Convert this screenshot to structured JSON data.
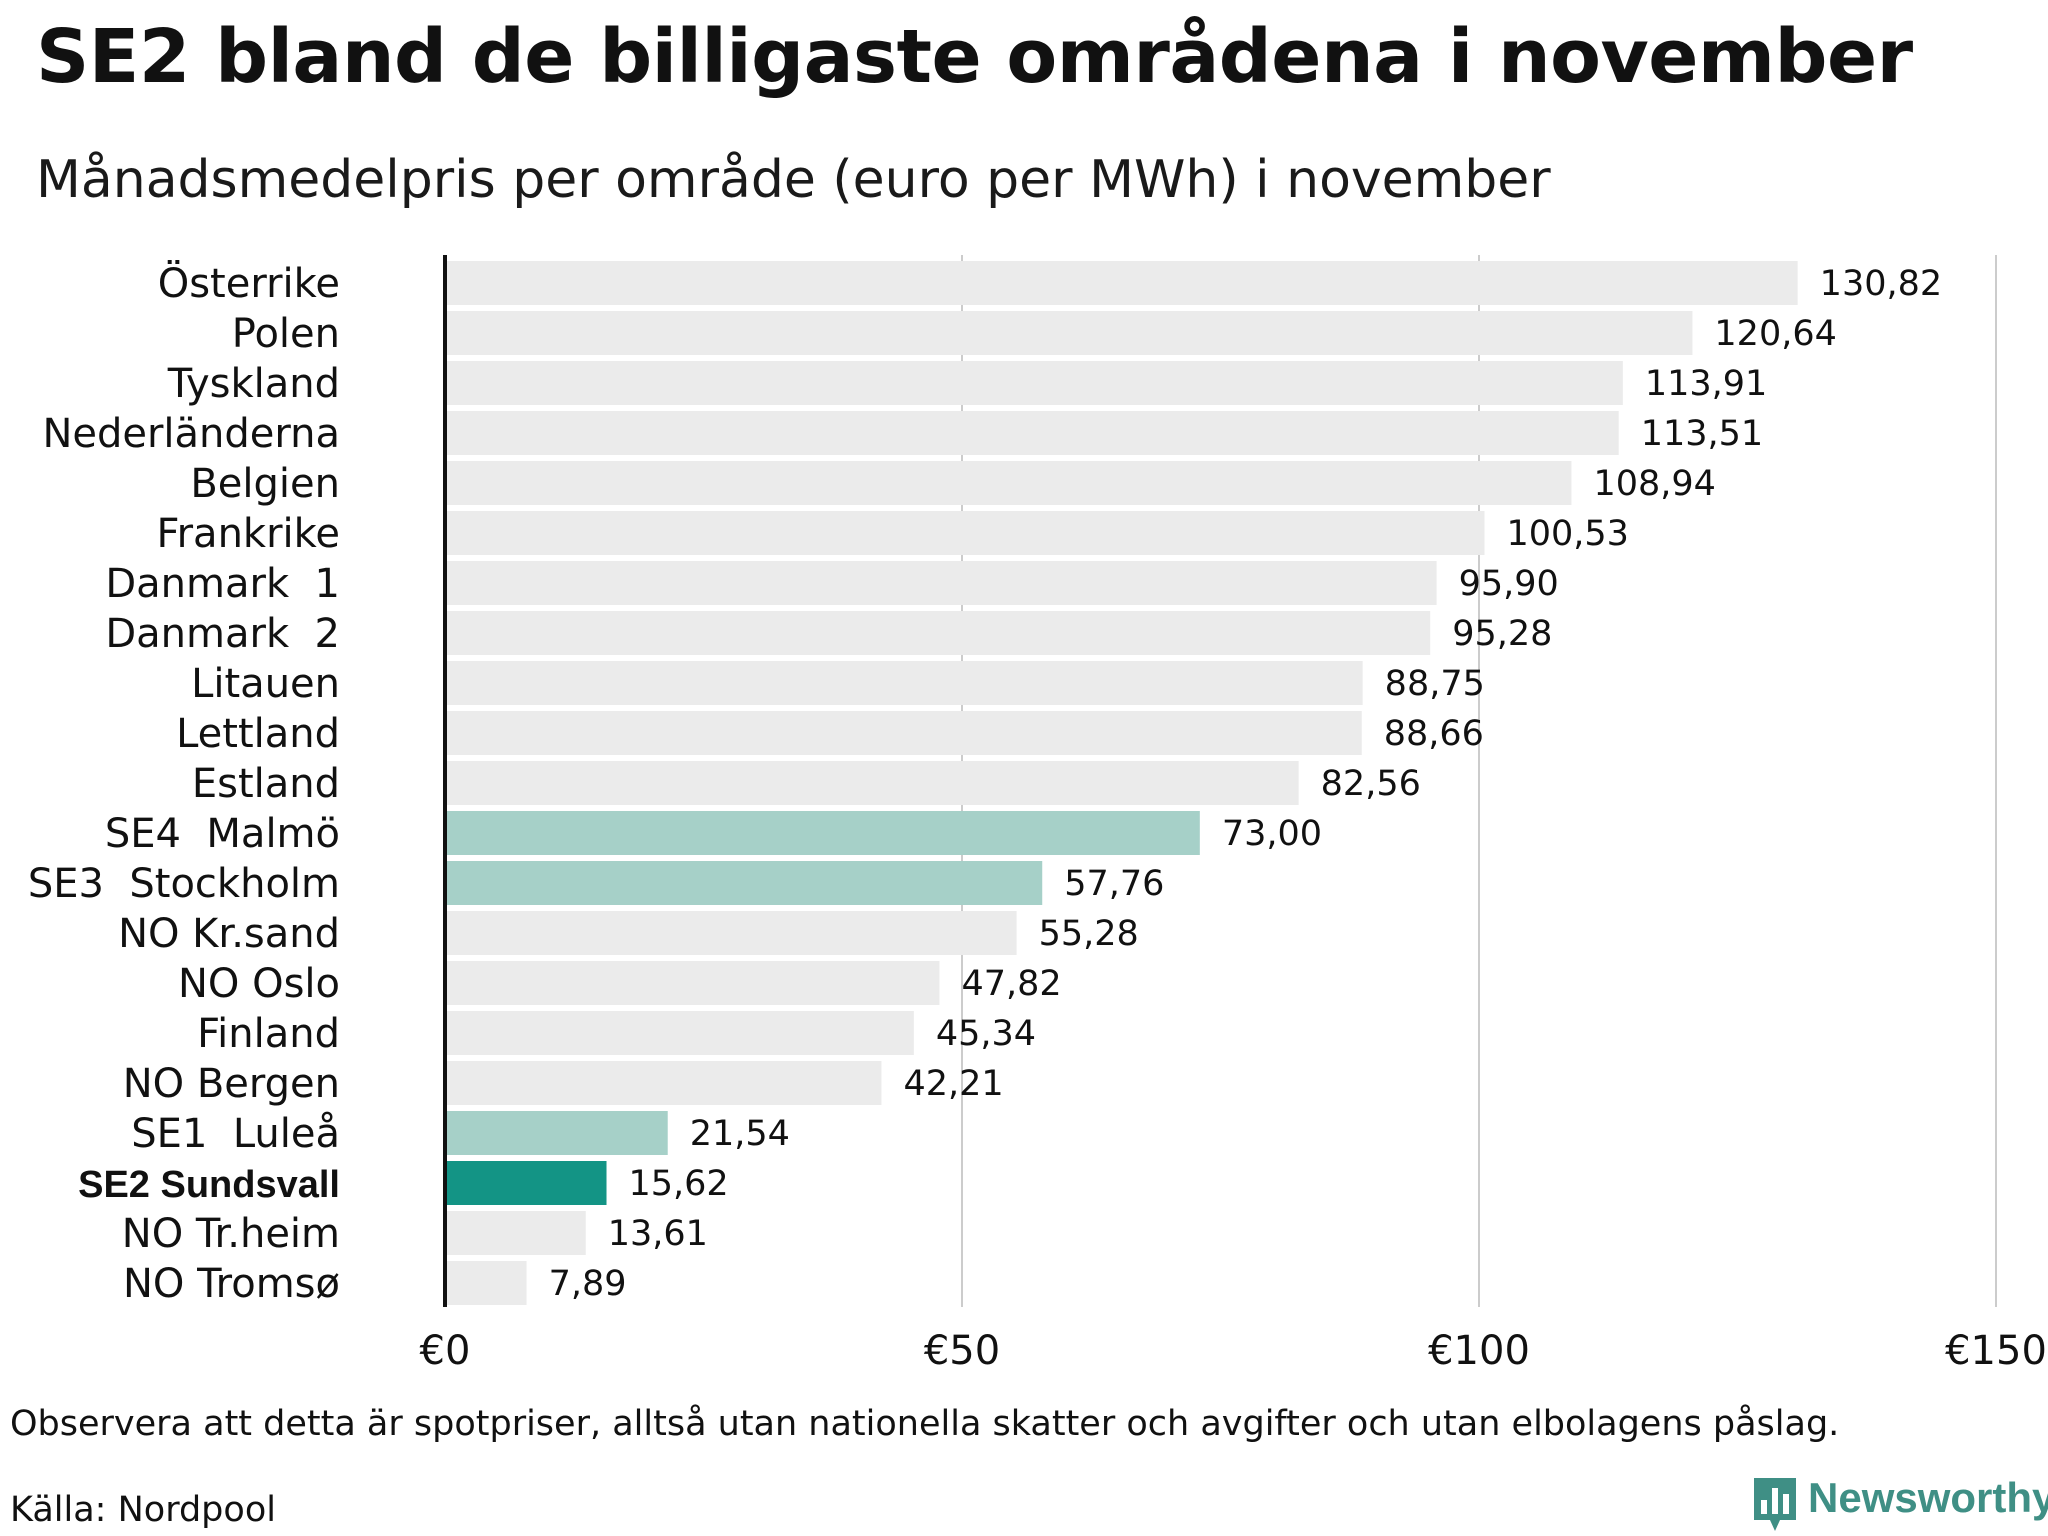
{
  "chart_data": {
    "type": "bar",
    "orientation": "horizontal",
    "title": "SE2 bland de billigaste områdena i november",
    "subtitle": "Månadsmedelpris per område (euro per MWh) i november",
    "categories": [
      "Österrike",
      "Polen",
      "Tyskland",
      "Nederländerna",
      "Belgien",
      "Frankrike",
      "Danmark  1",
      "Danmark  2",
      "Litauen",
      "Lettland",
      "Estland",
      "SE4  Malmö",
      "SE3  Stockholm",
      "NO Kr.sand",
      "NO Oslo",
      "Finland",
      "NO Bergen",
      "SE1  Luleå",
      "SE2 Sundsvall",
      "NO Tr.heim",
      "NO Tromsø"
    ],
    "values": [
      130.82,
      120.64,
      113.91,
      113.51,
      108.94,
      100.53,
      95.9,
      95.28,
      88.75,
      88.66,
      82.56,
      73.0,
      57.76,
      55.28,
      47.82,
      45.34,
      42.21,
      21.54,
      15.62,
      13.61,
      7.89
    ],
    "value_labels": [
      "130,82",
      "120,64",
      "113,91",
      "113,51",
      "108,94",
      "100,53",
      "95,90",
      "95,28",
      "88,75",
      "88,66",
      "82,56",
      "73,00",
      "57,76",
      "55,28",
      "47,82",
      "45,34",
      "42,21",
      "21,54",
      "15,62",
      "13,61",
      "7,89"
    ],
    "highlight": [
      "normal",
      "normal",
      "normal",
      "normal",
      "normal",
      "normal",
      "normal",
      "normal",
      "normal",
      "normal",
      "normal",
      "se",
      "se",
      "normal",
      "normal",
      "normal",
      "normal",
      "se",
      "main",
      "normal",
      "normal"
    ],
    "bold_label_index": 18,
    "xlim": [
      0,
      150
    ],
    "xticks": [
      0,
      50,
      100,
      150
    ],
    "xtick_labels": [
      "€0",
      "€50",
      "€100",
      "€150"
    ],
    "grid": "vertical",
    "colors": {
      "normal": "#ebebeb",
      "se": "#a6d0c8",
      "main": "#139485",
      "grid": "#cccccc",
      "axis": "#111111"
    }
  },
  "footer": {
    "note": "Observera att detta är spotpriser, alltså utan nationella skatter och avgifter och utan elbolagens påslag.",
    "source": "Källa: Nordpool"
  },
  "logo": {
    "text": "Newsworthy",
    "icon": "bar-chart-speech-bubble-icon",
    "color": "#3f8f85"
  }
}
